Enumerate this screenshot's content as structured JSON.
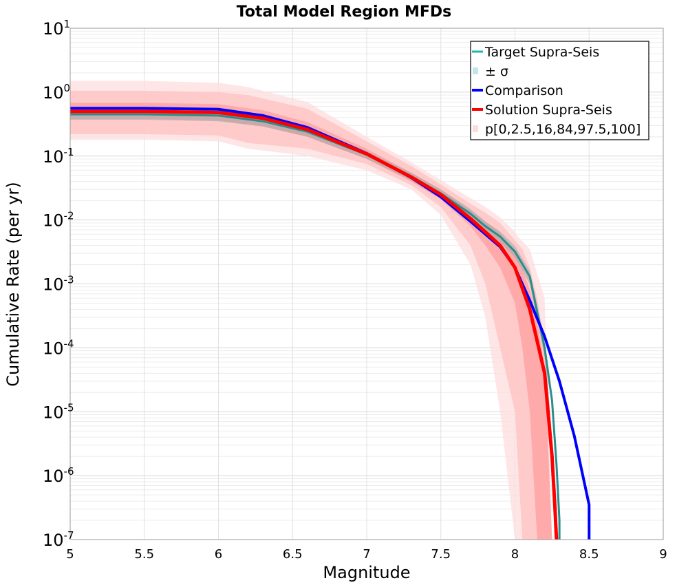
{
  "chart_data": {
    "type": "line",
    "title": "Total Model Region MFDs",
    "xlabel": "Magnitude",
    "ylabel": "Cumulative Rate (per yr)",
    "xlim": [
      5,
      9
    ],
    "ylim": [
      1e-07,
      10
    ],
    "yscale": "log",
    "grid": true,
    "legend_position": "top-right",
    "x_ticks": [
      "5",
      "5.5",
      "6",
      "6.5",
      "7",
      "7.5",
      "8",
      "8.5",
      "9"
    ],
    "y_ticks": [
      {
        "base": "10",
        "exp": "1"
      },
      {
        "base": "10",
        "exp": "0"
      },
      {
        "base": "10",
        "exp": "-1"
      },
      {
        "base": "10",
        "exp": "-2"
      },
      {
        "base": "10",
        "exp": "-3"
      },
      {
        "base": "10",
        "exp": "-4"
      },
      {
        "base": "10",
        "exp": "-5"
      },
      {
        "base": "10",
        "exp": "-6"
      },
      {
        "base": "10",
        "exp": "-7"
      }
    ],
    "legend": [
      {
        "label": "Target Supra-Seis",
        "kind": "line",
        "color": "#1fb5b5"
      },
      {
        "label": "± σ",
        "kind": "fill",
        "color": "#bfe8ec"
      },
      {
        "label": "Comparison",
        "kind": "line",
        "color": "#0000ff"
      },
      {
        "label": "Solution Supra-Seis",
        "kind": "line",
        "color": "#ff0000"
      },
      {
        "label": "p[0,2.5,16,84,97.5,100]",
        "kind": "fill",
        "color": "#ffdcdc"
      }
    ],
    "series": [
      {
        "name": "Target Supra-Seis",
        "color": "#2a8d8d",
        "width": 3,
        "x": [
          5.0,
          5.5,
          6.0,
          6.3,
          6.6,
          7.0,
          7.3,
          7.5,
          7.7,
          7.8,
          7.9,
          8.0,
          8.1,
          8.2,
          8.25,
          8.28,
          8.3,
          8.3
        ],
        "y": [
          0.45,
          0.45,
          0.43,
          0.35,
          0.24,
          0.105,
          0.048,
          0.026,
          0.0125,
          0.008,
          0.0055,
          0.0032,
          0.0013,
          0.0001,
          1.5e-05,
          1.5e-06,
          2e-07,
          1e-07
        ]
      },
      {
        "name": "Comparison",
        "color": "#0000ff",
        "width": 4,
        "x": [
          5.0,
          5.5,
          6.0,
          6.3,
          6.6,
          7.0,
          7.3,
          7.5,
          7.7,
          7.8,
          7.9,
          8.0,
          8.1,
          8.2,
          8.3,
          8.4,
          8.5,
          8.5
        ],
        "y": [
          0.56,
          0.56,
          0.54,
          0.43,
          0.28,
          0.11,
          0.046,
          0.023,
          0.0095,
          0.006,
          0.0038,
          0.0018,
          0.00055,
          0.00015,
          3e-05,
          4.2e-06,
          3.5e-07,
          1e-07
        ]
      },
      {
        "name": "Solution Supra-Seis",
        "color": "#ff0000",
        "width": 5,
        "x": [
          5.0,
          5.5,
          6.0,
          6.3,
          6.6,
          7.0,
          7.3,
          7.5,
          7.7,
          7.8,
          7.9,
          8.0,
          8.1,
          8.2,
          8.25,
          8.27,
          8.28
        ],
        "y": [
          0.5,
          0.5,
          0.48,
          0.39,
          0.26,
          0.108,
          0.047,
          0.025,
          0.0105,
          0.0065,
          0.004,
          0.0018,
          0.0004,
          4e-05,
          2e-06,
          3e-07,
          1e-07
        ]
      }
    ],
    "bands": [
      {
        "name": "p[0,100]",
        "color": "#ffdddd",
        "x": [
          5.0,
          5.5,
          6.0,
          6.2,
          6.6,
          7.0,
          7.3,
          7.5,
          7.7,
          7.8,
          7.9,
          8.0,
          8.02,
          8.1,
          8.2,
          8.25,
          8.3
        ],
        "low": [
          0.18,
          0.18,
          0.17,
          0.13,
          0.1,
          0.06,
          0.03,
          0.012,
          0.002,
          0.0003,
          1e-05,
          1e-07,
          1e-07,
          1e-07,
          1e-07,
          1e-07,
          1e-07
        ],
        "high": [
          1.5,
          1.5,
          1.4,
          1.2,
          0.7,
          0.2,
          0.08,
          0.042,
          0.022,
          0.016,
          0.011,
          0.0065,
          0.0055,
          0.0035,
          0.0006,
          1e-07,
          1e-07
        ]
      },
      {
        "name": "p[2.5,97.5]",
        "color": "#ffc0c0",
        "x": [
          5.0,
          5.5,
          6.0,
          6.2,
          6.6,
          7.0,
          7.3,
          7.5,
          7.7,
          7.8,
          7.9,
          8.0,
          8.05,
          8.1,
          8.15,
          8.2,
          8.25
        ],
        "low": [
          0.22,
          0.22,
          0.21,
          0.16,
          0.13,
          0.075,
          0.035,
          0.016,
          0.004,
          0.001,
          0.0001,
          1e-05,
          1e-07,
          1e-07,
          1e-07,
          1e-07,
          1e-07
        ],
        "high": [
          1.05,
          1.05,
          1.0,
          0.9,
          0.55,
          0.17,
          0.07,
          0.036,
          0.018,
          0.013,
          0.009,
          0.0048,
          0.0035,
          0.0018,
          0.0006,
          0.0001,
          1e-07
        ]
      },
      {
        "name": "p[16,84]",
        "color": "#ff9f9f",
        "x": [
          5.0,
          5.5,
          6.0,
          6.3,
          6.6,
          7.0,
          7.3,
          7.5,
          7.7,
          7.8,
          7.9,
          8.0,
          8.05,
          8.1,
          8.15,
          8.2,
          8.25
        ],
        "low": [
          0.38,
          0.38,
          0.36,
          0.29,
          0.2,
          0.09,
          0.04,
          0.021,
          0.008,
          0.004,
          0.0018,
          0.0005,
          0.0001,
          1e-05,
          1e-07,
          1e-07,
          1e-07
        ],
        "high": [
          0.68,
          0.68,
          0.65,
          0.52,
          0.34,
          0.13,
          0.055,
          0.03,
          0.014,
          0.0095,
          0.0062,
          0.003,
          0.0017,
          0.0008,
          0.00025,
          5e-05,
          1e-07
        ]
      },
      {
        "name": "± σ",
        "color": "#9aaaaa",
        "x": [
          5.0,
          5.5,
          6.0,
          6.3,
          6.6,
          7.0,
          7.3,
          7.5,
          7.7,
          7.8,
          7.9,
          8.0,
          8.1,
          8.2,
          8.3
        ],
        "low": [
          0.37,
          0.37,
          0.35,
          0.29,
          0.2,
          0.09,
          0.042,
          0.022,
          0.0105,
          0.0067,
          0.0045,
          0.0026,
          0.001,
          7e-05,
          1e-07
        ],
        "high": [
          0.55,
          0.55,
          0.52,
          0.42,
          0.29,
          0.12,
          0.055,
          0.03,
          0.0148,
          0.0095,
          0.0066,
          0.0039,
          0.0016,
          0.00014,
          1e-07
        ]
      }
    ]
  }
}
